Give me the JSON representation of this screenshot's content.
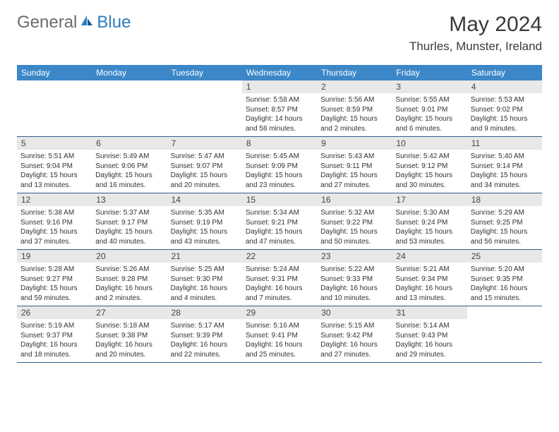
{
  "logo": {
    "general": "General",
    "blue": "Blue"
  },
  "title": "May 2024",
  "location": "Thurles, Munster, Ireland",
  "colors": {
    "headerBg": "#3b87c8",
    "headerText": "#ffffff",
    "dayNumBg": "#e8e8e8",
    "textDark": "#333333",
    "rowBorder": "#2f5e8a",
    "logoGray": "#6b6b6b",
    "logoBlue": "#2b7bbf"
  },
  "dayNames": [
    "Sunday",
    "Monday",
    "Tuesday",
    "Wednesday",
    "Thursday",
    "Friday",
    "Saturday"
  ],
  "weeks": [
    [
      {
        "n": "",
        "sr": "",
        "ss": "",
        "dl": ""
      },
      {
        "n": "",
        "sr": "",
        "ss": "",
        "dl": ""
      },
      {
        "n": "",
        "sr": "",
        "ss": "",
        "dl": ""
      },
      {
        "n": "1",
        "sr": "5:58 AM",
        "ss": "8:57 PM",
        "dl": "14 hours and 58 minutes."
      },
      {
        "n": "2",
        "sr": "5:56 AM",
        "ss": "8:59 PM",
        "dl": "15 hours and 2 minutes."
      },
      {
        "n": "3",
        "sr": "5:55 AM",
        "ss": "9:01 PM",
        "dl": "15 hours and 6 minutes."
      },
      {
        "n": "4",
        "sr": "5:53 AM",
        "ss": "9:02 PM",
        "dl": "15 hours and 9 minutes."
      }
    ],
    [
      {
        "n": "5",
        "sr": "5:51 AM",
        "ss": "9:04 PM",
        "dl": "15 hours and 13 minutes."
      },
      {
        "n": "6",
        "sr": "5:49 AM",
        "ss": "9:06 PM",
        "dl": "15 hours and 16 minutes."
      },
      {
        "n": "7",
        "sr": "5:47 AM",
        "ss": "9:07 PM",
        "dl": "15 hours and 20 minutes."
      },
      {
        "n": "8",
        "sr": "5:45 AM",
        "ss": "9:09 PM",
        "dl": "15 hours and 23 minutes."
      },
      {
        "n": "9",
        "sr": "5:43 AM",
        "ss": "9:11 PM",
        "dl": "15 hours and 27 minutes."
      },
      {
        "n": "10",
        "sr": "5:42 AM",
        "ss": "9:12 PM",
        "dl": "15 hours and 30 minutes."
      },
      {
        "n": "11",
        "sr": "5:40 AM",
        "ss": "9:14 PM",
        "dl": "15 hours and 34 minutes."
      }
    ],
    [
      {
        "n": "12",
        "sr": "5:38 AM",
        "ss": "9:16 PM",
        "dl": "15 hours and 37 minutes."
      },
      {
        "n": "13",
        "sr": "5:37 AM",
        "ss": "9:17 PM",
        "dl": "15 hours and 40 minutes."
      },
      {
        "n": "14",
        "sr": "5:35 AM",
        "ss": "9:19 PM",
        "dl": "15 hours and 43 minutes."
      },
      {
        "n": "15",
        "sr": "5:34 AM",
        "ss": "9:21 PM",
        "dl": "15 hours and 47 minutes."
      },
      {
        "n": "16",
        "sr": "5:32 AM",
        "ss": "9:22 PM",
        "dl": "15 hours and 50 minutes."
      },
      {
        "n": "17",
        "sr": "5:30 AM",
        "ss": "9:24 PM",
        "dl": "15 hours and 53 minutes."
      },
      {
        "n": "18",
        "sr": "5:29 AM",
        "ss": "9:25 PM",
        "dl": "15 hours and 56 minutes."
      }
    ],
    [
      {
        "n": "19",
        "sr": "5:28 AM",
        "ss": "9:27 PM",
        "dl": "15 hours and 59 minutes."
      },
      {
        "n": "20",
        "sr": "5:26 AM",
        "ss": "9:28 PM",
        "dl": "16 hours and 2 minutes."
      },
      {
        "n": "21",
        "sr": "5:25 AM",
        "ss": "9:30 PM",
        "dl": "16 hours and 4 minutes."
      },
      {
        "n": "22",
        "sr": "5:24 AM",
        "ss": "9:31 PM",
        "dl": "16 hours and 7 minutes."
      },
      {
        "n": "23",
        "sr": "5:22 AM",
        "ss": "9:33 PM",
        "dl": "16 hours and 10 minutes."
      },
      {
        "n": "24",
        "sr": "5:21 AM",
        "ss": "9:34 PM",
        "dl": "16 hours and 13 minutes."
      },
      {
        "n": "25",
        "sr": "5:20 AM",
        "ss": "9:35 PM",
        "dl": "16 hours and 15 minutes."
      }
    ],
    [
      {
        "n": "26",
        "sr": "5:19 AM",
        "ss": "9:37 PM",
        "dl": "16 hours and 18 minutes."
      },
      {
        "n": "27",
        "sr": "5:18 AM",
        "ss": "9:38 PM",
        "dl": "16 hours and 20 minutes."
      },
      {
        "n": "28",
        "sr": "5:17 AM",
        "ss": "9:39 PM",
        "dl": "16 hours and 22 minutes."
      },
      {
        "n": "29",
        "sr": "5:16 AM",
        "ss": "9:41 PM",
        "dl": "16 hours and 25 minutes."
      },
      {
        "n": "30",
        "sr": "5:15 AM",
        "ss": "9:42 PM",
        "dl": "16 hours and 27 minutes."
      },
      {
        "n": "31",
        "sr": "5:14 AM",
        "ss": "9:43 PM",
        "dl": "16 hours and 29 minutes."
      },
      {
        "n": "",
        "sr": "",
        "ss": "",
        "dl": ""
      }
    ]
  ],
  "labels": {
    "sunrise": "Sunrise:",
    "sunset": "Sunset:",
    "daylight": "Daylight:"
  }
}
